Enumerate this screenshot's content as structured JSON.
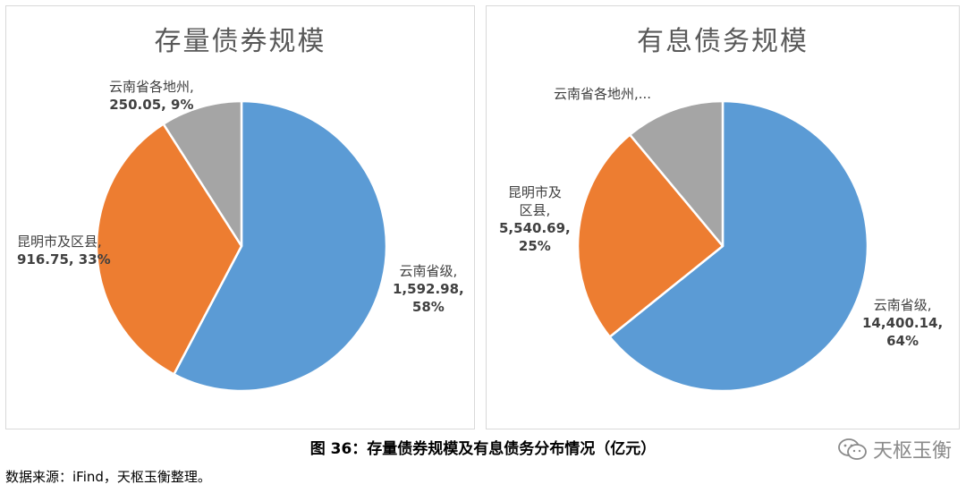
{
  "chart_data": [
    {
      "type": "pie",
      "title": "存量债券规模",
      "categories": [
        "云南省级",
        "昆明市及区县",
        "云南省各地州"
      ],
      "values": [
        1592.98,
        916.75,
        250.05
      ],
      "percent_labels": [
        "58%",
        "33%",
        "9%"
      ],
      "value_labels": [
        "1,592.98",
        "916.75",
        "250.05"
      ],
      "colors": [
        "#5b9bd5",
        "#ed7d31",
        "#a5a5a5"
      ],
      "data_labels": {
        "cat_0": "云南省级,",
        "val_0": "1,592.98,",
        "pct_0": "58%",
        "cat_1": "昆明市及区县,",
        "valpct_1": "916.75, 33%",
        "cat_2": "云南省各地州,",
        "valpct_2": "250.05, 9%"
      }
    },
    {
      "type": "pie",
      "title": "有息债务规模",
      "categories": [
        "云南省级",
        "昆明市及区县",
        "云南省各地州"
      ],
      "values": [
        14400.14,
        5540.69,
        2480.0
      ],
      "percent_labels": [
        "64%",
        "25%",
        ""
      ],
      "value_labels": [
        "14,400.14",
        "5,540.69",
        ""
      ],
      "colors": [
        "#5b9bd5",
        "#ed7d31",
        "#a5a5a5"
      ],
      "data_labels": {
        "cat_0": "云南省级,",
        "val_0": "14,400.14,",
        "pct_0": "64%",
        "cat_1a": "昆明市及",
        "cat_1b": "区县,",
        "val_1": "5,540.69,",
        "pct_1": "25%",
        "cat_2": "云南省各地州,..."
      }
    }
  ],
  "caption": "图 36：存量债券规模及有息债务分布情况（亿元）",
  "source": "数据来源：iFind，天枢玉衡整理。",
  "watermark": "天枢玉衡"
}
